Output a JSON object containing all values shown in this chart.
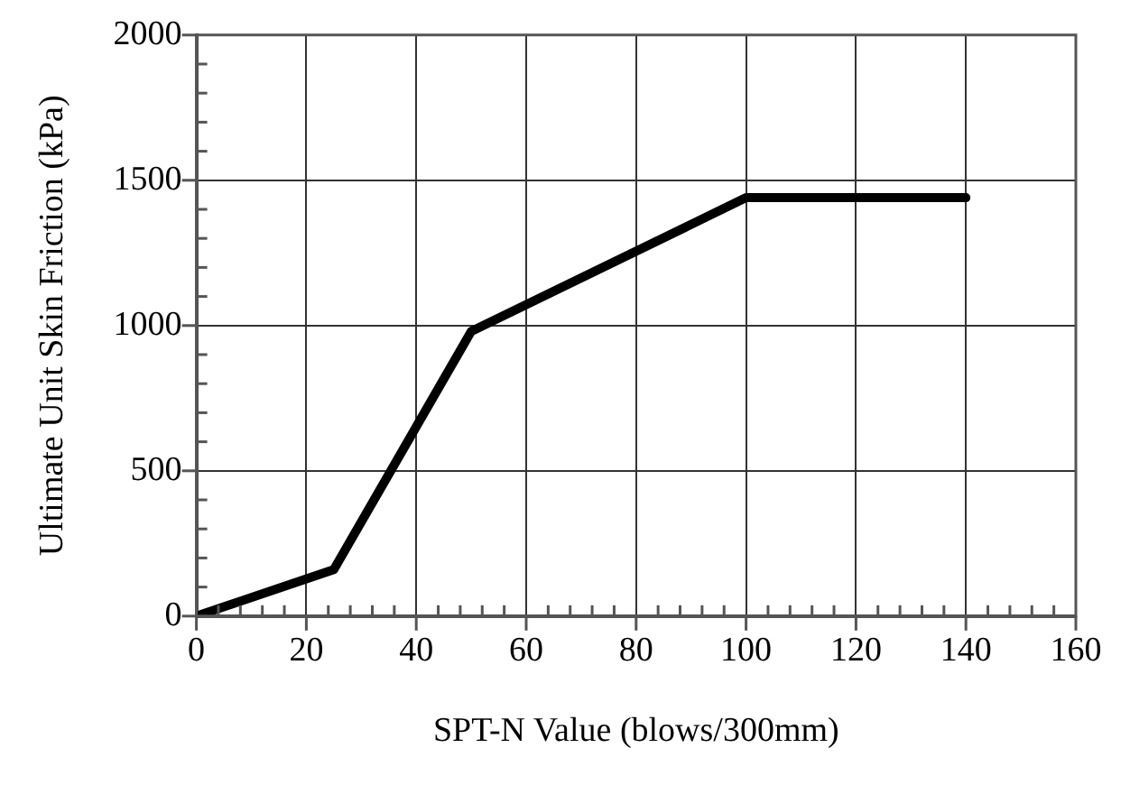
{
  "chart_data": {
    "type": "line",
    "xlabel": "SPT-N Value (blows/300mm)",
    "ylabel": "Ultimate Unit Skin Friction (kPa)",
    "x": [
      0,
      25,
      50,
      100,
      140
    ],
    "series": [
      {
        "color": "#000000",
        "values": [
          0,
          160,
          980,
          1440,
          1440
        ]
      }
    ],
    "xlim": [
      0,
      160
    ],
    "ylim": [
      0,
      2000
    ],
    "xticks": [
      0,
      {
        "value": 4,
        "label": null
      },
      {
        "value": 8,
        "label": null
      },
      {
        "value": 12,
        "label": null
      },
      {
        "value": 16,
        "label": null
      },
      20,
      {
        "value": 24,
        "label": null
      },
      {
        "value": 28,
        "label": null
      },
      {
        "value": 32,
        "label": null
      },
      {
        "value": 36,
        "label": null
      },
      40,
      {
        "value": 44,
        "label": null
      },
      {
        "value": 48,
        "label": null
      },
      {
        "value": 52,
        "label": null
      },
      {
        "value": 56,
        "label": null
      },
      60,
      {
        "value": 64,
        "label": null
      },
      {
        "value": 68,
        "label": null
      },
      {
        "value": 72,
        "label": null
      },
      {
        "value": 76,
        "label": null
      },
      80,
      {
        "value": 84,
        "label": null
      },
      {
        "value": 88,
        "label": null
      },
      {
        "value": 92,
        "label": null
      },
      {
        "value": 96,
        "label": null
      },
      100,
      {
        "value": 104,
        "label": null
      },
      {
        "value": 108,
        "label": null
      },
      {
        "value": 112,
        "label": null
      },
      {
        "value": 116,
        "label": null
      },
      120,
      {
        "value": 124,
        "label": null
      },
      {
        "value": 128,
        "label": null
      },
      {
        "value": 132,
        "label": null
      },
      {
        "value": 136,
        "label": null
      },
      140,
      {
        "value": 144,
        "label": null
      },
      {
        "value": 148,
        "label": null
      },
      {
        "value": 152,
        "label": null
      },
      {
        "value": 156,
        "label": null
      },
      160
    ],
    "yticks": [
      0,
      {
        "value": 100,
        "label": null
      },
      {
        "value": 200,
        "label": null
      },
      {
        "value": 300,
        "label": null
      },
      {
        "value": 400,
        "label": null
      },
      500,
      {
        "value": 600,
        "label": null
      },
      {
        "value": 700,
        "label": null
      },
      {
        "value": 800,
        "label": null
      },
      {
        "value": 900,
        "label": null
      },
      1000,
      {
        "value": 1100,
        "label": null
      },
      {
        "value": 1200,
        "label": null
      },
      {
        "value": 1300,
        "label": null
      },
      {
        "value": 1400,
        "label": null
      },
      1500,
      {
        "value": 1600,
        "label": null
      },
      {
        "value": 1700,
        "label": null
      },
      {
        "value": 1800,
        "label": null
      },
      {
        "value": 1900,
        "label": null
      },
      2000
    ],
    "grid": true,
    "marker": "none",
    "line_style": "solid"
  }
}
